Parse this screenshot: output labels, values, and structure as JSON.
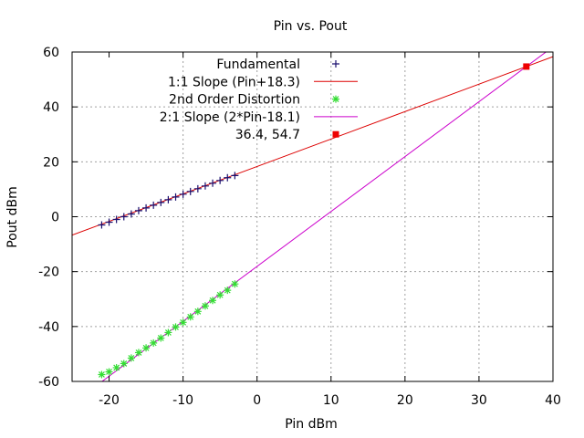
{
  "chart_data": {
    "type": "scatter",
    "title": "Pin vs. Pout",
    "xlabel": "Pin dBm",
    "ylabel": "Pout dBm",
    "xlim": [
      -25,
      40
    ],
    "ylim": [
      -60,
      60
    ],
    "xticks": [
      -20,
      -10,
      0,
      10,
      20,
      30,
      40
    ],
    "yticks": [
      -60,
      -40,
      -20,
      0,
      20,
      40,
      60
    ],
    "grid": true,
    "legend_position": "top-left",
    "series": [
      {
        "name": "Fundamental",
        "kind": "points",
        "marker": "plus",
        "color": "#1a0f6e",
        "x": [
          -21,
          -20,
          -19,
          -18,
          -17,
          -16,
          -15,
          -14,
          -13,
          -12,
          -11,
          -10,
          -9,
          -8,
          -7,
          -6,
          -5,
          -4,
          -3
        ],
        "y": [
          -3,
          -2,
          -1,
          0,
          1,
          2.2,
          3.2,
          4.2,
          5.2,
          6.2,
          7.2,
          8.2,
          9.2,
          10.2,
          11.2,
          12.2,
          13.2,
          14.2,
          15
        ]
      },
      {
        "name": "1:1 Slope (Pin+18.3)",
        "kind": "line",
        "color": "#dd0000",
        "slope": 1,
        "intercept": 18.3
      },
      {
        "name": "2nd Order Distortion",
        "kind": "points",
        "marker": "star",
        "color": "#33dd33",
        "x": [
          -21,
          -20,
          -19,
          -18,
          -17,
          -16,
          -15,
          -14,
          -13,
          -12,
          -11,
          -10,
          -9,
          -8,
          -7,
          -6,
          -5,
          -4,
          -3
        ],
        "y": [
          -57.5,
          -56.5,
          -55,
          -53.5,
          -51.5,
          -49.5,
          -47.8,
          -46,
          -44.2,
          -42.2,
          -40.2,
          -38.5,
          -36.5,
          -34.5,
          -32.5,
          -30.5,
          -28.5,
          -26.8,
          -24.5
        ]
      },
      {
        "name": "2:1 Slope (2*Pin-18.1)",
        "kind": "line",
        "color": "#cc00cc",
        "slope": 2,
        "intercept": -18.1
      },
      {
        "name": "36.4, 54.7",
        "kind": "points",
        "marker": "square",
        "color": "#ee0000",
        "x": [
          36.4
        ],
        "y": [
          54.7
        ]
      }
    ]
  }
}
